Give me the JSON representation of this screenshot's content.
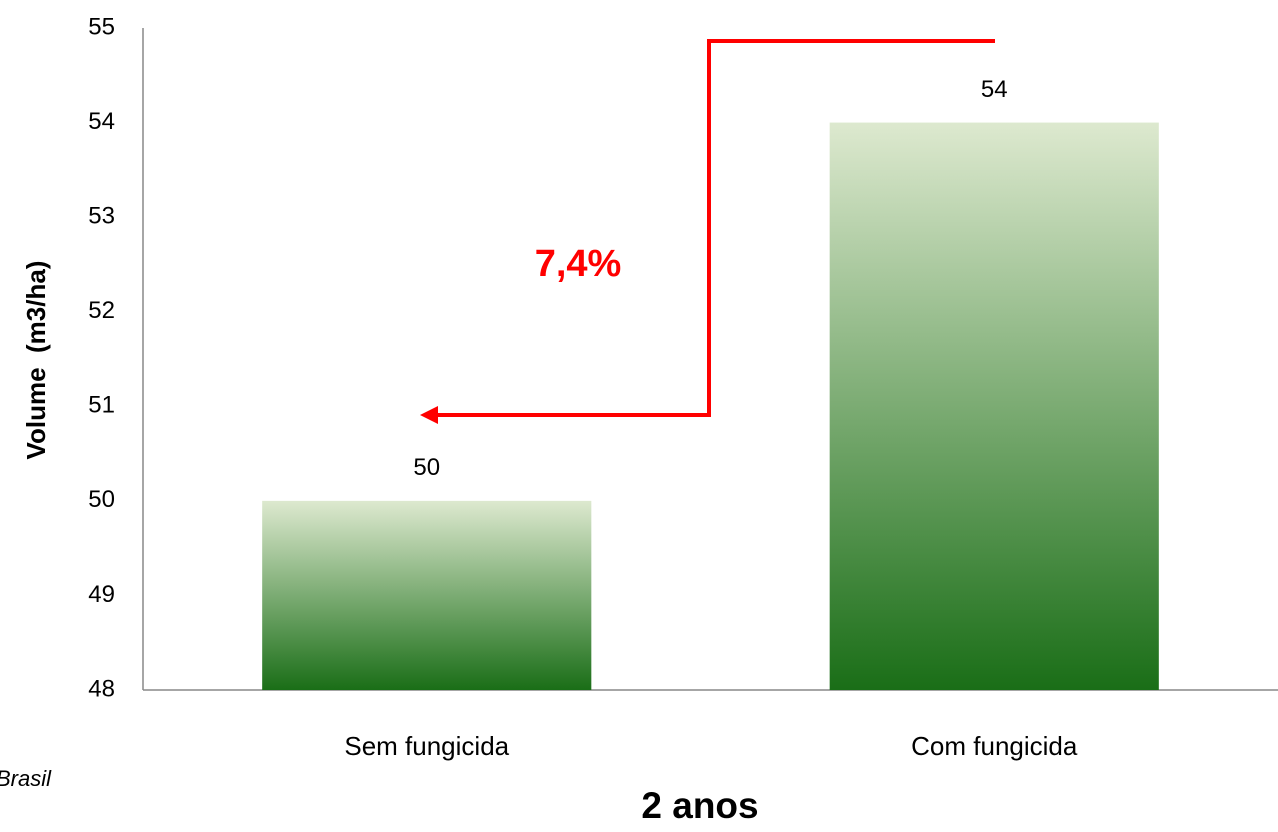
{
  "chart_data": {
    "type": "bar",
    "categories": [
      "Sem fungicida",
      "Com fungicida"
    ],
    "values": [
      50,
      54
    ],
    "gradient": [
      "#dde9cf",
      "#1a6e17"
    ],
    "ylim": [
      48,
      55
    ],
    "yticks": [
      48,
      49,
      50,
      51,
      52,
      53,
      54,
      55
    ],
    "x_label": "2 anos",
    "y_label": "Volume  (m3/ha)",
    "annotation": "7,4%",
    "source": "Brasil"
  }
}
